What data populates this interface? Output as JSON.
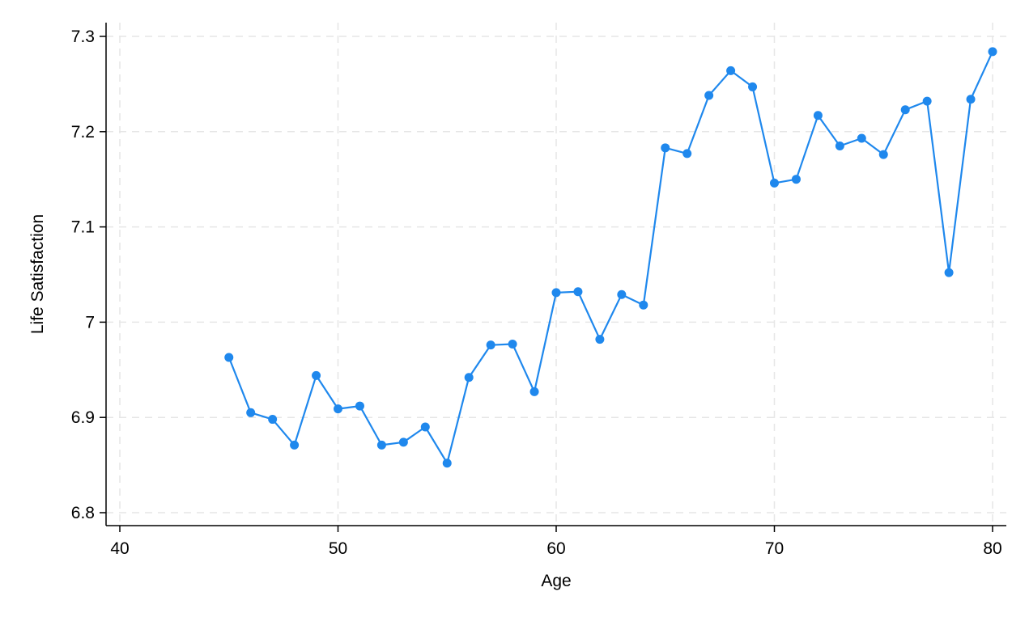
{
  "chart_data": {
    "type": "line",
    "title": "",
    "xlabel": "Age",
    "ylabel": "Life Satisfaction",
    "xlim": [
      40,
      80
    ],
    "ylim": [
      6.8,
      7.3
    ],
    "xticks": [
      40,
      50,
      60,
      70,
      80
    ],
    "yticks": [
      6.8,
      6.9,
      7.0,
      7.1,
      7.2,
      7.3
    ],
    "xtick_labels": [
      "40",
      "50",
      "60",
      "70",
      "80"
    ],
    "ytick_labels": [
      "6.8",
      "6.9",
      "7",
      "7.1",
      "7.2",
      "7.3"
    ],
    "grid": true,
    "legend": "none",
    "series": [
      {
        "color": "#1f88ed",
        "marker": "circle",
        "x": [
          45,
          46,
          47,
          48,
          49,
          50,
          51,
          52,
          53,
          54,
          55,
          56,
          57,
          58,
          59,
          60,
          61,
          62,
          63,
          64,
          65,
          66,
          67,
          68,
          69,
          70,
          71,
          72,
          73,
          74,
          75,
          76,
          77,
          78,
          79,
          80
        ],
        "y": [
          6.963,
          6.905,
          6.898,
          6.871,
          6.944,
          6.909,
          6.912,
          6.871,
          6.874,
          6.89,
          6.852,
          6.942,
          6.976,
          6.977,
          6.927,
          7.031,
          7.032,
          6.982,
          7.029,
          7.018,
          7.183,
          7.177,
          7.238,
          7.264,
          7.247,
          7.146,
          7.15,
          7.217,
          7.185,
          7.193,
          7.176,
          7.223,
          7.232,
          7.052,
          7.234,
          7.284
        ]
      }
    ]
  }
}
